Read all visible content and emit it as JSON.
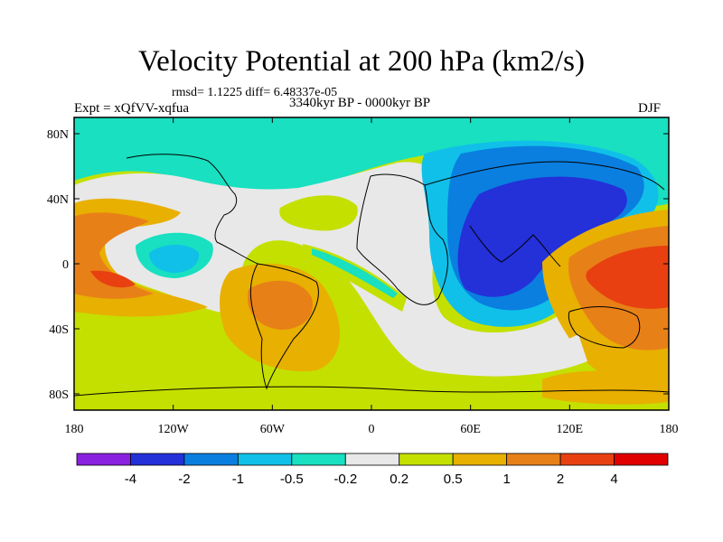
{
  "title": "Velocity Potential at 200 hPa (km2/s)",
  "stats": "rmsd= 1.1225 diff= 6.48337e-05",
  "experiment": "Expt = xQfVV-xqfua",
  "period": "3340kyr BP - 0000kyr BP",
  "season": "DJF",
  "axes": {
    "lon_labels": [
      "180",
      "120W",
      "60W",
      "0",
      "60E",
      "120E",
      "180"
    ],
    "lat_labels": [
      "80N",
      "40N",
      "0",
      "40S",
      "80S"
    ]
  },
  "colorbar": {
    "labels": [
      "-4",
      "-2",
      "-1",
      "-0.5",
      "-0.2",
      "0.2",
      "0.5",
      "1",
      "2",
      "4"
    ],
    "colors": [
      "#8a20e0",
      "#2430d8",
      "#0a7fe0",
      "#10c0e8",
      "#18e0c0",
      "#e8e8e8",
      "#c4e000",
      "#e8b000",
      "#e88018",
      "#e84010",
      "#e00000"
    ]
  },
  "field_colors": {
    "base": "#c4e000",
    "neutral": "#e8e8e8",
    "neg1": "#18e0c0",
    "neg2": "#10c0e8",
    "neg3": "#0a7fe0",
    "neg4": "#2430d8",
    "pos1": "#e8b000",
    "pos2": "#e88018",
    "pos3": "#e84010"
  }
}
